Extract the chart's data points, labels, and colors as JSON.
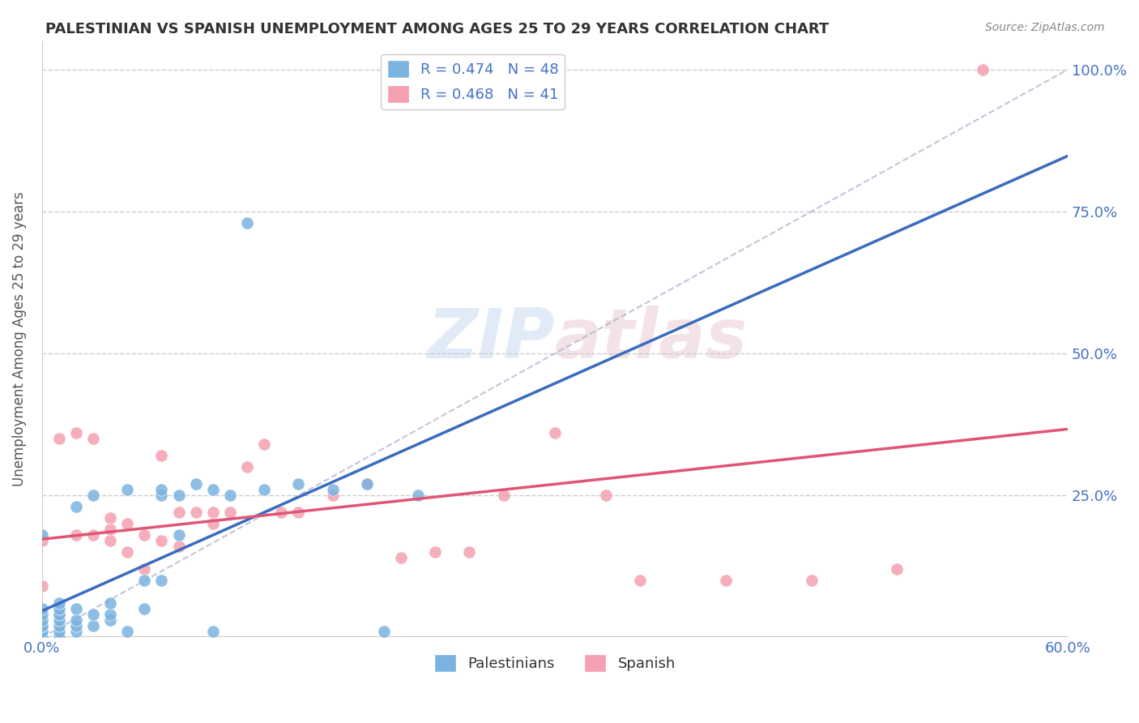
{
  "title": "PALESTINIAN VS SPANISH UNEMPLOYMENT AMONG AGES 25 TO 29 YEARS CORRELATION CHART",
  "source": "Source: ZipAtlas.com",
  "ylabel": "Unemployment Among Ages 25 to 29 years",
  "xlabel": "",
  "xlim": [
    0.0,
    0.6
  ],
  "ylim": [
    0.0,
    1.05
  ],
  "xticks": [
    0.0,
    0.1,
    0.2,
    0.3,
    0.4,
    0.5,
    0.6
  ],
  "xticklabels": [
    "0.0%",
    "",
    "",
    "",
    "",
    "",
    "60.0%"
  ],
  "ytick_values": [
    0.0,
    0.25,
    0.5,
    0.75,
    1.0
  ],
  "ytick_labels": [
    "",
    "25.0%",
    "50.0%",
    "75.0%",
    "100.0%"
  ],
  "palestinian_R": 0.474,
  "palestinian_N": 48,
  "spanish_R": 0.468,
  "spanish_N": 41,
  "blue_color": "#7ab3e0",
  "blue_line_color": "#3a6bbf",
  "pink_color": "#f4a0b0",
  "pink_line_color": "#e05575",
  "watermark_zip": "ZIP",
  "watermark_atlas": "atlas",
  "palestinians_x": [
    0.0,
    0.0,
    0.0,
    0.0,
    0.0,
    0.0,
    0.0,
    0.0,
    0.0,
    0.0,
    0.01,
    0.01,
    0.01,
    0.01,
    0.01,
    0.01,
    0.01,
    0.02,
    0.02,
    0.02,
    0.02,
    0.02,
    0.03,
    0.03,
    0.03,
    0.04,
    0.04,
    0.04,
    0.05,
    0.05,
    0.06,
    0.06,
    0.07,
    0.07,
    0.07,
    0.08,
    0.08,
    0.09,
    0.1,
    0.1,
    0.11,
    0.12,
    0.13,
    0.15,
    0.17,
    0.19,
    0.2,
    0.22
  ],
  "palestinians_y": [
    0.0,
    0.0,
    0.01,
    0.01,
    0.02,
    0.02,
    0.03,
    0.04,
    0.05,
    0.18,
    0.0,
    0.01,
    0.02,
    0.03,
    0.04,
    0.05,
    0.06,
    0.01,
    0.02,
    0.03,
    0.05,
    0.23,
    0.02,
    0.04,
    0.25,
    0.03,
    0.04,
    0.06,
    0.01,
    0.26,
    0.05,
    0.1,
    0.1,
    0.25,
    0.26,
    0.18,
    0.25,
    0.27,
    0.01,
    0.26,
    0.25,
    0.73,
    0.26,
    0.27,
    0.26,
    0.27,
    0.01,
    0.25
  ],
  "spanish_x": [
    0.0,
    0.0,
    0.0,
    0.01,
    0.01,
    0.02,
    0.02,
    0.03,
    0.03,
    0.04,
    0.04,
    0.04,
    0.05,
    0.05,
    0.06,
    0.06,
    0.07,
    0.07,
    0.08,
    0.08,
    0.09,
    0.1,
    0.1,
    0.11,
    0.12,
    0.13,
    0.14,
    0.15,
    0.17,
    0.19,
    0.21,
    0.23,
    0.25,
    0.27,
    0.3,
    0.33,
    0.35,
    0.4,
    0.45,
    0.5,
    0.55
  ],
  "spanish_y": [
    0.01,
    0.09,
    0.17,
    0.04,
    0.35,
    0.18,
    0.36,
    0.18,
    0.35,
    0.17,
    0.19,
    0.21,
    0.15,
    0.2,
    0.12,
    0.18,
    0.17,
    0.32,
    0.16,
    0.22,
    0.22,
    0.22,
    0.2,
    0.22,
    0.3,
    0.34,
    0.22,
    0.22,
    0.25,
    0.27,
    0.14,
    0.15,
    0.15,
    0.25,
    0.36,
    0.25,
    0.1,
    0.1,
    0.1,
    0.12,
    1.0
  ]
}
